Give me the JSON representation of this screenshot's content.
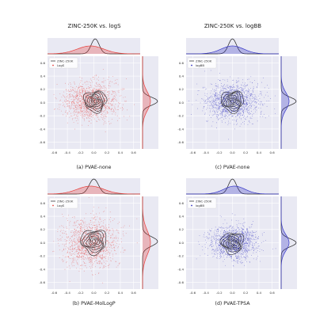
{
  "figure": {
    "column_titles": [
      "ZINC-250K vs. logS",
      "ZINC-250K vs. logBB"
    ]
  },
  "chart_data": [
    {
      "type": "scatter",
      "panel": "top-left",
      "caption": "(a) PVAE-none",
      "legend": [
        "ZINC-250K",
        "LogS"
      ],
      "legend_placement": "top-left",
      "xlim": [
        -0.7,
        0.7
      ],
      "ylim": [
        -0.7,
        0.7
      ],
      "xticks": [
        -0.6,
        -0.4,
        -0.2,
        0.0,
        0.2,
        0.4,
        0.6
      ],
      "yticks": [
        -0.6,
        -0.4,
        -0.2,
        0.0,
        0.2,
        0.4,
        0.6
      ],
      "grid": true,
      "series": [
        {
          "name": "ZINC-250K",
          "kind": "density-contour",
          "color": "#222222",
          "center": [
            0.02,
            0.02
          ],
          "spread": [
            0.07,
            0.07
          ]
        },
        {
          "name": "LogS",
          "kind": "scatter",
          "color": "#e8403c",
          "center": [
            -0.05,
            0.02
          ],
          "spread": [
            0.2,
            0.14
          ]
        }
      ],
      "marginal_x": [
        {
          "name": "ZINC-250K",
          "color": "#222222",
          "center": 0.02,
          "spread": 0.06
        },
        {
          "name": "LogS",
          "color": "#e8403c",
          "center": -0.05,
          "spread": 0.2
        }
      ],
      "marginal_y": [
        {
          "name": "ZINC-250K",
          "color": "#222222",
          "center": 0.02,
          "spread": 0.06
        },
        {
          "name": "LogS",
          "color": "#e8403c",
          "center": 0.02,
          "spread": 0.14
        }
      ]
    },
    {
      "type": "scatter",
      "panel": "top-right",
      "caption": "(c) PVAE-none",
      "legend": [
        "ZINC-250K",
        "logBB"
      ],
      "legend_placement": "top-left",
      "xlim": [
        -0.7,
        0.7
      ],
      "ylim": [
        -0.7,
        0.7
      ],
      "xticks": [
        -0.6,
        -0.4,
        -0.2,
        0.0,
        0.2,
        0.4,
        0.6
      ],
      "yticks": [
        -0.6,
        -0.4,
        -0.2,
        0.0,
        0.2,
        0.4,
        0.6
      ],
      "grid": true,
      "series": [
        {
          "name": "ZINC-250K",
          "kind": "density-contour",
          "color": "#222222",
          "center": [
            0.0,
            0.02
          ],
          "spread": [
            0.07,
            0.07
          ]
        },
        {
          "name": "logBB",
          "kind": "scatter",
          "color": "#3030c0",
          "center": [
            0.0,
            0.02
          ],
          "spread": [
            0.2,
            0.14
          ]
        }
      ],
      "marginal_x": [
        {
          "name": "ZINC-250K",
          "color": "#222222",
          "center": 0.0,
          "spread": 0.06
        },
        {
          "name": "logBB",
          "color": "#3838c8",
          "center": 0.0,
          "spread": 0.17
        }
      ],
      "marginal_y": [
        {
          "name": "ZINC-250K",
          "color": "#222222",
          "center": 0.02,
          "spread": 0.06
        },
        {
          "name": "logBB",
          "color": "#3838c8",
          "center": 0.02,
          "spread": 0.13
        }
      ]
    },
    {
      "type": "scatter",
      "panel": "bottom-left",
      "caption": "(b) PVAE-MolLogP",
      "legend": [
        "ZINC-250K",
        "LogS"
      ],
      "legend_placement": "top-left",
      "xlim": [
        -0.7,
        0.7
      ],
      "ylim": [
        -0.7,
        0.7
      ],
      "xticks": [
        -0.6,
        -0.4,
        -0.2,
        0.0,
        0.2,
        0.4,
        0.6
      ],
      "yticks": [
        -0.6,
        -0.4,
        -0.2,
        0.0,
        0.2,
        0.4,
        0.6
      ],
      "grid": true,
      "series": [
        {
          "name": "ZINC-250K",
          "kind": "density-contour",
          "color": "#222222",
          "center": [
            0.0,
            0.02
          ],
          "spread": [
            0.08,
            0.08
          ]
        },
        {
          "name": "LogS",
          "kind": "scatter",
          "color": "#e8403c",
          "center": [
            -0.05,
            0.0
          ],
          "spread": [
            0.2,
            0.18
          ]
        }
      ],
      "marginal_x": [
        {
          "name": "ZINC-250K",
          "color": "#222222",
          "center": 0.0,
          "spread": 0.07
        },
        {
          "name": "LogS",
          "color": "#e8403c",
          "center": -0.05,
          "spread": 0.2
        }
      ],
      "marginal_y": [
        {
          "name": "ZINC-250K",
          "color": "#222222",
          "center": 0.02,
          "spread": 0.07
        },
        {
          "name": "LogS",
          "color": "#e8403c",
          "center": 0.0,
          "spread": 0.18
        }
      ]
    },
    {
      "type": "scatter",
      "panel": "bottom-right",
      "caption": "(d) PVAE-TPSA",
      "legend": [
        "ZINC-250K",
        "logBB"
      ],
      "legend_placement": "top-left",
      "xlim": [
        -0.7,
        0.7
      ],
      "ylim": [
        -0.7,
        0.7
      ],
      "xticks": [
        -0.6,
        -0.4,
        -0.2,
        0.0,
        0.2,
        0.4,
        0.6
      ],
      "yticks": [
        -0.6,
        -0.4,
        -0.2,
        0.0,
        0.2,
        0.4,
        0.6
      ],
      "grid": true,
      "series": [
        {
          "name": "ZINC-250K",
          "kind": "density-contour",
          "color": "#222222",
          "center": [
            0.0,
            0.0
          ],
          "spread": [
            0.07,
            0.07
          ]
        },
        {
          "name": "logBB",
          "kind": "scatter",
          "color": "#3030c0",
          "center": [
            0.03,
            0.0
          ],
          "spread": [
            0.18,
            0.13
          ]
        }
      ],
      "marginal_x": [
        {
          "name": "ZINC-250K",
          "color": "#222222",
          "center": 0.0,
          "spread": 0.06
        },
        {
          "name": "logBB",
          "color": "#3838c8",
          "center": 0.03,
          "spread": 0.16
        }
      ],
      "marginal_y": [
        {
          "name": "ZINC-250K",
          "color": "#222222",
          "center": 0.0,
          "spread": 0.06
        },
        {
          "name": "logBB",
          "color": "#3838c8",
          "center": 0.0,
          "spread": 0.12
        }
      ]
    }
  ]
}
